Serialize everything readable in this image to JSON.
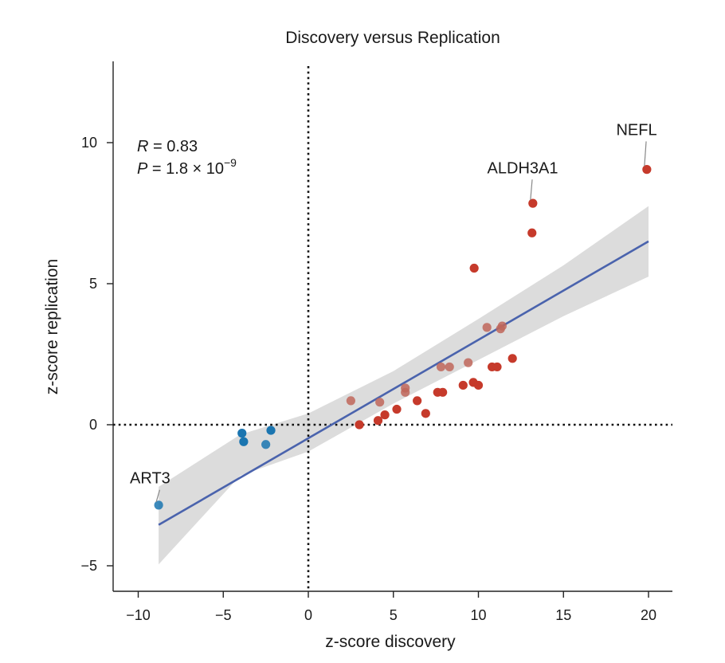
{
  "chart_data": {
    "type": "scatter",
    "title": "Discovery versus Replication",
    "xlabel": "z-score discovery",
    "ylabel": "z-score replication",
    "xlim": [
      -11.5,
      21.5
    ],
    "ylim": [
      -5.9,
      12.6
    ],
    "x_ticks": [
      -10,
      -5,
      0,
      5,
      10,
      15,
      20
    ],
    "y_ticks": [
      -5,
      0,
      5,
      10
    ],
    "x_tick_labels": [
      "−10",
      "−5",
      "0",
      "5",
      "10",
      "15",
      "20"
    ],
    "y_tick_labels": [
      "−5",
      "0",
      "5",
      "10"
    ],
    "reference_lines": {
      "x": 0,
      "y": 0,
      "style": "dotted"
    },
    "stats": {
      "r_symbol": "R",
      "r_text": " = 0.83",
      "p_symbol": "P",
      "p_text": " = 1.8 × 10",
      "p_exponent": "−9"
    },
    "regression": {
      "x_start": -8.8,
      "y_start": -3.55,
      "x_end": 20.0,
      "y_end": 6.5,
      "color": "#4a63ad"
    },
    "confidence_band": {
      "color": "#dcdcdc",
      "upper": [
        [
          -8.8,
          -2.2
        ],
        [
          -4,
          -0.35
        ],
        [
          0,
          0.4
        ],
        [
          5,
          1.9
        ],
        [
          10,
          3.75
        ],
        [
          15,
          5.65
        ],
        [
          20,
          7.75
        ]
      ],
      "lower": [
        [
          -8.8,
          -4.95
        ],
        [
          -4,
          -1.8
        ],
        [
          0,
          -0.95
        ],
        [
          5,
          0.75
        ],
        [
          10,
          2.3
        ],
        [
          15,
          3.85
        ],
        [
          20,
          5.25
        ]
      ]
    },
    "colors": {
      "negative": "#1a75b0",
      "positive": "#c63a2b",
      "positive_faded": "#c0665a"
    },
    "points": [
      {
        "x": -8.8,
        "y": -2.85,
        "group": "negative",
        "faded": true
      },
      {
        "x": -3.9,
        "y": -0.3,
        "group": "negative"
      },
      {
        "x": -3.8,
        "y": -0.6,
        "group": "negative"
      },
      {
        "x": -2.5,
        "y": -0.7,
        "group": "negative",
        "faded": true
      },
      {
        "x": -2.2,
        "y": -0.2,
        "group": "negative"
      },
      {
        "x": 2.5,
        "y": 0.85,
        "group": "positive",
        "faded": true
      },
      {
        "x": 3.0,
        "y": 0.0,
        "group": "positive"
      },
      {
        "x": 4.1,
        "y": 0.15,
        "group": "positive"
      },
      {
        "x": 4.2,
        "y": 0.8,
        "group": "positive",
        "faded": true
      },
      {
        "x": 4.5,
        "y": 0.35,
        "group": "positive"
      },
      {
        "x": 5.2,
        "y": 0.55,
        "group": "positive"
      },
      {
        "x": 5.7,
        "y": 1.3,
        "group": "positive",
        "faded": true
      },
      {
        "x": 5.7,
        "y": 1.15,
        "group": "positive",
        "faded": true
      },
      {
        "x": 6.4,
        "y": 0.85,
        "group": "positive"
      },
      {
        "x": 6.9,
        "y": 0.4,
        "group": "positive"
      },
      {
        "x": 7.6,
        "y": 1.15,
        "group": "positive"
      },
      {
        "x": 7.8,
        "y": 2.05,
        "group": "positive",
        "faded": true
      },
      {
        "x": 7.9,
        "y": 1.15,
        "group": "positive"
      },
      {
        "x": 8.3,
        "y": 2.05,
        "group": "positive",
        "faded": true
      },
      {
        "x": 9.1,
        "y": 1.4,
        "group": "positive"
      },
      {
        "x": 9.4,
        "y": 2.2,
        "group": "positive",
        "faded": true
      },
      {
        "x": 9.7,
        "y": 1.5,
        "group": "positive"
      },
      {
        "x": 9.75,
        "y": 5.55,
        "group": "positive"
      },
      {
        "x": 10.0,
        "y": 1.4,
        "group": "positive"
      },
      {
        "x": 10.5,
        "y": 3.45,
        "group": "positive",
        "faded": true
      },
      {
        "x": 10.8,
        "y": 2.05,
        "group": "positive"
      },
      {
        "x": 11.1,
        "y": 2.05,
        "group": "positive"
      },
      {
        "x": 11.3,
        "y": 3.4,
        "group": "positive",
        "faded": true
      },
      {
        "x": 11.4,
        "y": 3.5,
        "group": "positive",
        "faded": true
      },
      {
        "x": 12.0,
        "y": 2.35,
        "group": "positive"
      },
      {
        "x": 13.15,
        "y": 6.8,
        "group": "positive"
      },
      {
        "x": 13.2,
        "y": 7.85,
        "group": "positive"
      },
      {
        "x": 19.9,
        "y": 9.05,
        "group": "positive"
      }
    ],
    "annotations": [
      {
        "label": "NEFL",
        "x": 19.9,
        "y": 9.05,
        "lx": 19.3,
        "ly": 10.1
      },
      {
        "label": "ALDH3A1",
        "x": 13.2,
        "y": 7.85,
        "lx": 12.6,
        "ly": 8.75
      },
      {
        "label": "ART3",
        "x": -8.8,
        "y": -2.85,
        "lx": -9.3,
        "ly": -2.25
      }
    ]
  }
}
